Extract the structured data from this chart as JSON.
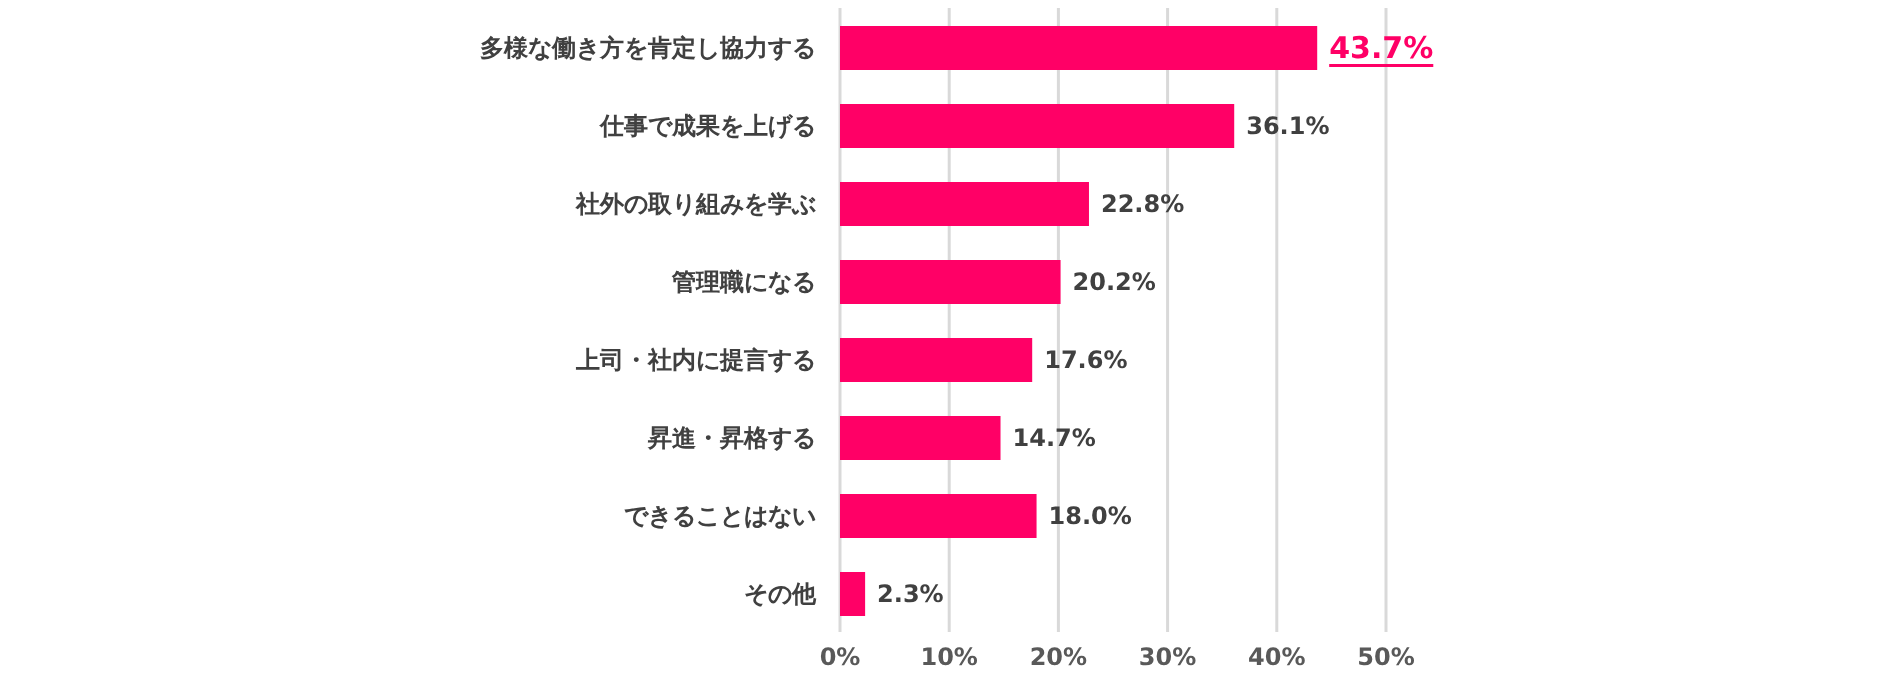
{
  "chart_data": {
    "type": "bar",
    "orientation": "horizontal",
    "categories": [
      "多様な働き方を肯定し協力する",
      "仕事で成果を上げる",
      "社外の取り組みを学ぶ",
      "管理職になる",
      "上司・社内に提言する",
      "昇進・昇格する",
      "できることはない",
      "その他"
    ],
    "values": [
      43.7,
      36.1,
      22.8,
      20.2,
      17.6,
      14.7,
      18.0,
      2.3
    ],
    "value_labels": [
      "43.7%",
      "36.1%",
      "22.8%",
      "20.2%",
      "17.6%",
      "14.7%",
      "18.0%",
      "2.3%"
    ],
    "color": "#ff0066",
    "xlim": [
      0,
      50
    ],
    "xticks": [
      {
        "value": 0,
        "label": "0%"
      },
      {
        "value": 10,
        "label": "10%"
      },
      {
        "value": 20,
        "label": "20%"
      },
      {
        "value": 30,
        "label": "30%"
      },
      {
        "value": 40,
        "label": "40%"
      },
      {
        "value": 50,
        "label": "50%"
      }
    ],
    "grid": "x"
  }
}
